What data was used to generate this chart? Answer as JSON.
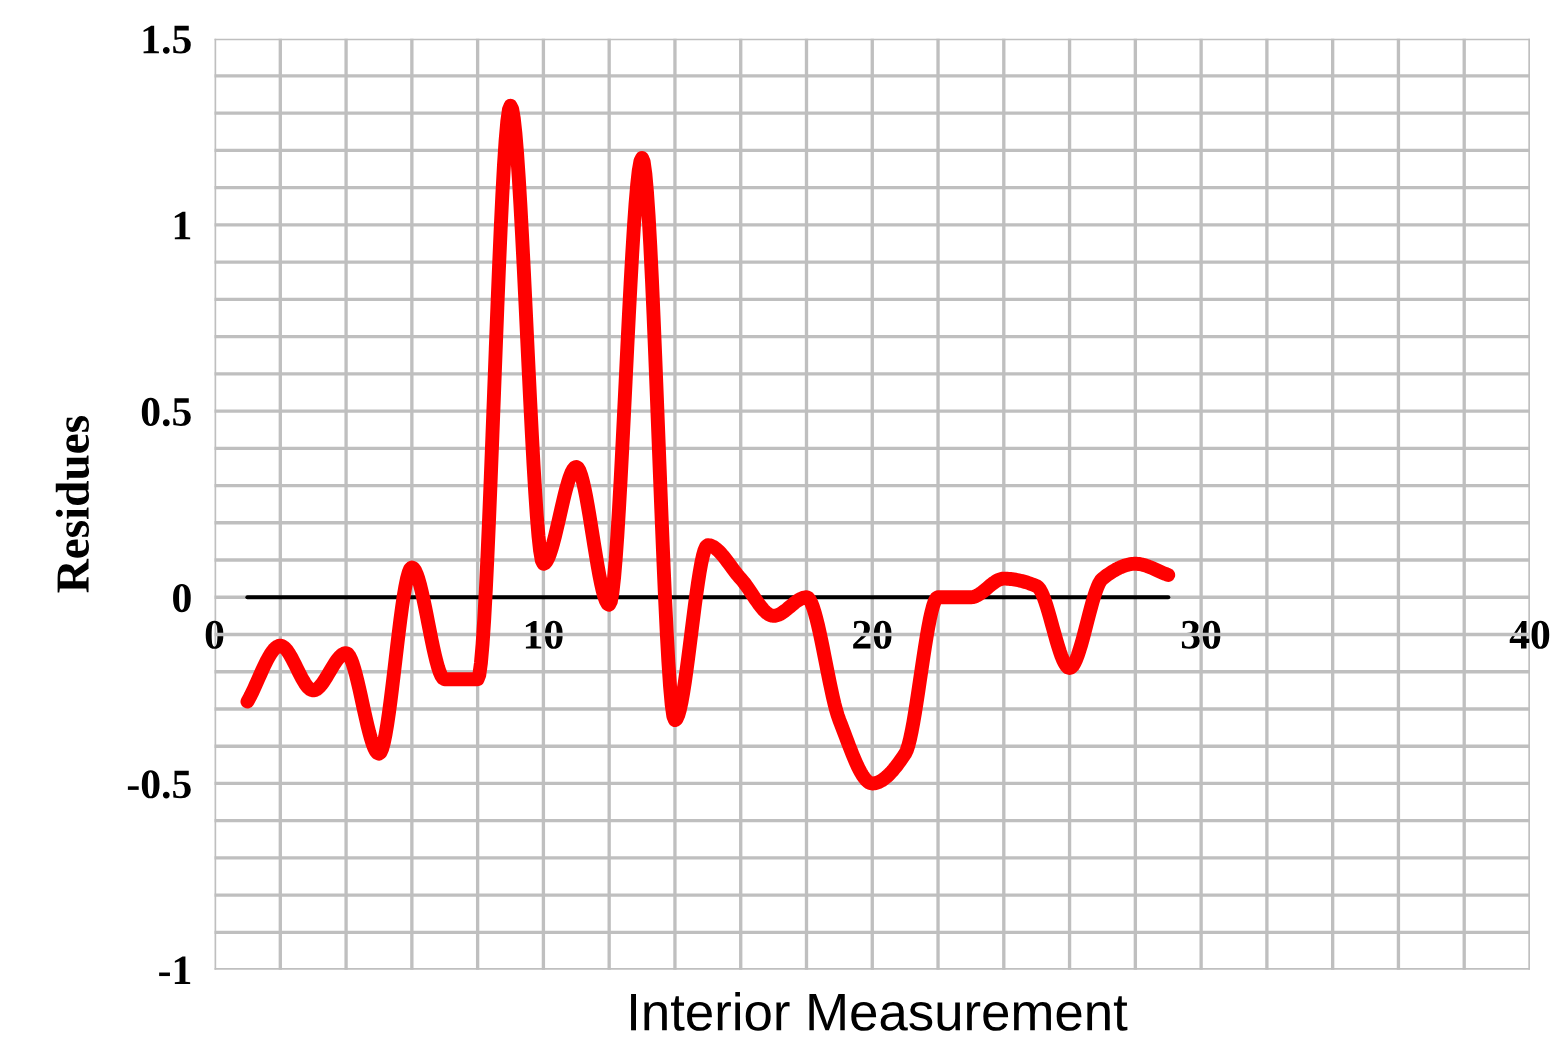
{
  "chart_data": {
    "type": "line",
    "xlabel": "Interior Measurement",
    "ylabel": "Residues",
    "series": [
      {
        "color": "#ff0000",
        "x": [
          1,
          2,
          3,
          4,
          5,
          6,
          7,
          8,
          9,
          10,
          11,
          12,
          13,
          14,
          15,
          16,
          17,
          18,
          19,
          20,
          21,
          22,
          23,
          24,
          25,
          26,
          27,
          28,
          29
        ],
        "values": [
          -0.28,
          -0.13,
          -0.25,
          -0.15,
          -0.42,
          0.08,
          -0.22,
          -0.22,
          1.32,
          0.09,
          0.35,
          -0.02,
          1.18,
          -0.33,
          0.14,
          0.05,
          -0.05,
          0.0,
          -0.33,
          -0.5,
          -0.42,
          0.0,
          0.0,
          0.05,
          0.03,
          -0.19,
          0.05,
          0.09,
          0.06
        ]
      },
      {
        "color": "#000000",
        "x": [
          1,
          29
        ],
        "values": [
          0,
          0
        ]
      }
    ],
    "xlim": [
      0,
      40
    ],
    "ylim": [
      -1,
      1.5
    ],
    "xticks": [
      0,
      {
        "value": 2,
        "label": null
      },
      {
        "value": 4,
        "label": null
      },
      {
        "value": 6,
        "label": null
      },
      {
        "value": 8,
        "label": null
      },
      10,
      {
        "value": 12,
        "label": null
      },
      {
        "value": 14,
        "label": null
      },
      {
        "value": 16,
        "label": null
      },
      {
        "value": 18,
        "label": null
      },
      20,
      {
        "value": 22,
        "label": null
      },
      {
        "value": 24,
        "label": null
      },
      {
        "value": 26,
        "label": null
      },
      {
        "value": 28,
        "label": null
      },
      30,
      {
        "value": 32,
        "label": null
      },
      {
        "value": 34,
        "label": null
      },
      {
        "value": 36,
        "label": null
      },
      {
        "value": 38,
        "label": null
      },
      40
    ],
    "yticks": [
      -1,
      {
        "value": -0.9,
        "label": null
      },
      {
        "value": -0.8,
        "label": null
      },
      {
        "value": -0.7,
        "label": null
      },
      {
        "value": -0.6,
        "label": null
      },
      -0.5,
      {
        "value": -0.4,
        "label": null
      },
      {
        "value": -0.3,
        "label": null
      },
      {
        "value": -0.2,
        "label": null
      },
      {
        "value": -0.1,
        "label": null
      },
      0,
      {
        "value": 0.1,
        "label": null
      },
      {
        "value": 0.2,
        "label": null
      },
      {
        "value": 0.3,
        "label": null
      },
      {
        "value": 0.4,
        "label": null
      },
      0.5,
      {
        "value": 0.6,
        "label": null
      },
      {
        "value": 0.7,
        "label": null
      },
      {
        "value": 0.8,
        "label": null
      },
      {
        "value": 0.9,
        "label": null
      },
      1,
      {
        "value": 1.1,
        "label": null
      },
      {
        "value": 1.2,
        "label": null
      },
      {
        "value": 1.3,
        "label": null
      },
      {
        "value": 1.4,
        "label": null
      },
      1.5
    ],
    "grid": true,
    "legend": false,
    "marker": "none",
    "line_style": "solid"
  }
}
